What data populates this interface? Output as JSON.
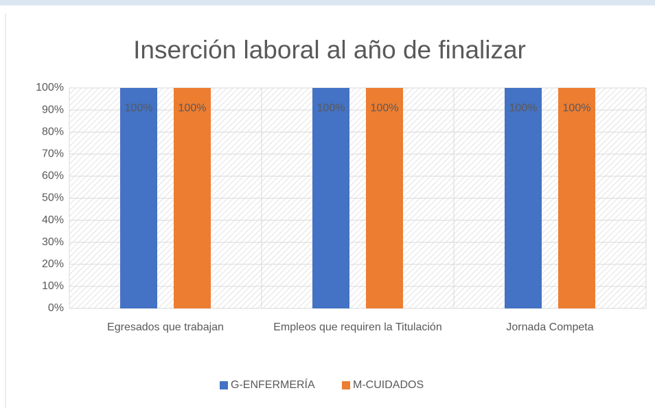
{
  "chart_data": {
    "type": "bar",
    "title": "Inserción laboral al año de finalizar",
    "categories": [
      "Egresados que trabajan",
      "Empleos que requiren la Titulación",
      "Jornada Competa"
    ],
    "series": [
      {
        "name": "G-ENFERMERÍA",
        "color": "#4472c4",
        "values": [
          100,
          100,
          100
        ],
        "value_labels": [
          "100%",
          "100%",
          "100%"
        ]
      },
      {
        "name": "M-CUIDADOS",
        "color": "#ed7d31",
        "values": [
          100,
          100,
          100
        ],
        "value_labels": [
          "100%",
          "100%",
          "100%"
        ]
      }
    ],
    "ylim": [
      0,
      100
    ],
    "yticks": [
      {
        "value": 0,
        "label": "0%"
      },
      {
        "value": 10,
        "label": "10%"
      },
      {
        "value": 20,
        "label": "20%"
      },
      {
        "value": 30,
        "label": "30%"
      },
      {
        "value": 40,
        "label": "40%"
      },
      {
        "value": 50,
        "label": "50%"
      },
      {
        "value": 60,
        "label": "60%"
      },
      {
        "value": 70,
        "label": "70%"
      },
      {
        "value": 80,
        "label": "80%"
      },
      {
        "value": 90,
        "label": "90%"
      },
      {
        "value": 100,
        "label": "100%"
      }
    ],
    "grid": true,
    "legend": "bottom"
  }
}
